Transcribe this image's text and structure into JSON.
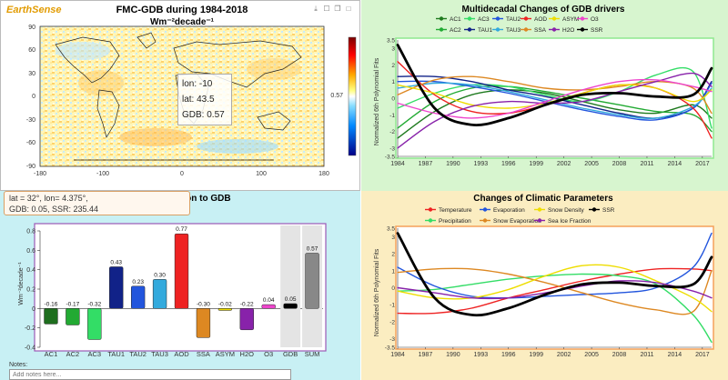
{
  "map": {
    "logo": "EarthSense",
    "title": "FMC-GDB during 1984-2018",
    "subtitle": "Wm⁻²decade⁻¹",
    "toolbar_icons": [
      "download-icon",
      "frame-icon",
      "copy-icon",
      "square-icon"
    ],
    "y_ticks": [
      "90",
      "60",
      "30",
      "0",
      "-30",
      "-60",
      "-90"
    ],
    "x_ticks": [
      "-180",
      "-100",
      "0",
      "100",
      "180"
    ],
    "colorbar_label": "0.57",
    "tooltip": {
      "lon": "lon: -10",
      "lat": "lat: 43.5",
      "gdb": "GDB: 0.57"
    }
  },
  "infobox": {
    "line1": "lat = 32°, lon= 4.375°,",
    "line2": "GDB: 0.05, SSR: 235.44"
  },
  "contrib": {
    "title": "Contribution to GDB",
    "ylabel": "Wm⁻²decade⁻¹",
    "notes_label": "Notes:",
    "notes_placeholder": "Add notes here..."
  },
  "drivers": {
    "title": "Multidecadal Changes of GDB drivers",
    "legend_row1": [
      {
        "name": "AC1",
        "color": "#1e7a1e"
      },
      {
        "name": "AC3",
        "color": "#33dd66"
      },
      {
        "name": "TAU2",
        "color": "#2255dd"
      },
      {
        "name": "AOD",
        "color": "#ee2222"
      },
      {
        "name": "ASYM",
        "color": "#eedd00"
      },
      {
        "name": "O3",
        "color": "#ee44cc"
      }
    ],
    "legend_row2": [
      {
        "name": "AC2",
        "color": "#22aa33"
      },
      {
        "name": "TAU1",
        "color": "#112288"
      },
      {
        "name": "TAU3",
        "color": "#33aadd"
      },
      {
        "name": "SSA",
        "color": "#dd8822"
      },
      {
        "name": "H2O",
        "color": "#8822aa"
      },
      {
        "name": "SSR",
        "color": "#000000"
      }
    ],
    "ylabel": "Normalized 6th Polynomial Fits"
  },
  "climate": {
    "title": "Changes of Climatic Parameters",
    "legend_row1": [
      {
        "name": "Temperature",
        "color": "#ee2222"
      },
      {
        "name": "Evaporation",
        "color": "#2255dd"
      },
      {
        "name": "Snow Density",
        "color": "#eedd00"
      },
      {
        "name": "SSR",
        "color": "#000000"
      }
    ],
    "legend_row2": [
      {
        "name": "Precipitation",
        "color": "#33dd66"
      },
      {
        "name": "Snow Evaporation",
        "color": "#dd8822"
      },
      {
        "name": "Sea Ice Fraction",
        "color": "#8822aa"
      }
    ],
    "ylabel": "Normalized 6th Polynomial Fits"
  },
  "chart_data": [
    {
      "type": "bar",
      "title": "Contribution to GDB",
      "ylabel": "Wm⁻²decade⁻¹",
      "categories": [
        "AC1",
        "AC2",
        "AC3",
        "TAU1",
        "TAU2",
        "TAU3",
        "AOD",
        "SSA",
        "ASYM",
        "H2O",
        "O3",
        "GDB",
        "SUM"
      ],
      "values": [
        -0.16,
        -0.17,
        -0.32,
        0.43,
        0.23,
        0.3,
        0.77,
        -0.3,
        -0.02,
        -0.22,
        0.04,
        0.05,
        0.57
      ],
      "value_labels": [
        "-0.16",
        "-0.17",
        "-0.32",
        "0.43",
        "0.23",
        "0.30",
        "0.77",
        "-0.30",
        "-0.02",
        "-0.22",
        "0.04",
        "0.05",
        "0.57"
      ],
      "colors": [
        "#1e6e1e",
        "#22aa33",
        "#33dd66",
        "#112288",
        "#2255dd",
        "#33aadd",
        "#ee2222",
        "#dd8822",
        "#eedd00",
        "#8822aa",
        "#ee44cc",
        "#000000",
        "#888888"
      ],
      "ylim": [
        -0.4,
        0.8
      ],
      "y_ticks": [
        "-0.4",
        "-0.2",
        "0",
        "0.2",
        "0.4",
        "0.6",
        "0.8"
      ]
    },
    {
      "type": "line",
      "title": "Multidecadal Changes of GDB drivers",
      "ylabel": "Normalized 6th Polynomial Fits",
      "ylim": [
        -3.5,
        3.5
      ],
      "y_ticks": [
        "-3.5",
        "-3",
        "-2",
        "-1",
        "0",
        "1",
        "2",
        "3",
        "3.5"
      ],
      "x_ticks": [
        "1984",
        "1987",
        "1990",
        "1993",
        "1996",
        "1999",
        "2002",
        "2005",
        "2008",
        "2011",
        "2014",
        "2017"
      ],
      "x": [
        1984,
        1988,
        1992,
        1996,
        2000,
        2004,
        2008,
        2012,
        2016,
        2018
      ],
      "series": [
        {
          "name": "AC1",
          "color": "#1e7a1e",
          "width": 1.4,
          "values": [
            -2.4,
            -0.8,
            0.2,
            0.5,
            0.3,
            -0.2,
            -0.7,
            -0.9,
            -0.4,
            -1.2
          ]
        },
        {
          "name": "AC2",
          "color": "#22aa33",
          "width": 1.4,
          "values": [
            -1.8,
            -0.2,
            0.6,
            0.7,
            0.4,
            0.0,
            -0.4,
            -0.8,
            -1.0,
            -2.0
          ]
        },
        {
          "name": "AC3",
          "color": "#33dd66",
          "width": 1.4,
          "values": [
            -0.6,
            0.3,
            0.8,
            0.7,
            0.2,
            -0.2,
            0.4,
            1.4,
            1.6,
            -1.8
          ]
        },
        {
          "name": "TAU1",
          "color": "#112288",
          "width": 1.4,
          "values": [
            1.3,
            1.3,
            1.0,
            0.5,
            0.1,
            -0.4,
            -0.9,
            -1.2,
            -0.6,
            1.0
          ]
        },
        {
          "name": "TAU2",
          "color": "#2255dd",
          "width": 1.4,
          "values": [
            1.0,
            1.0,
            0.7,
            0.3,
            -0.2,
            -0.7,
            -1.1,
            -1.3,
            -0.6,
            0.9
          ]
        },
        {
          "name": "TAU3",
          "color": "#33aadd",
          "width": 1.4,
          "values": [
            0.6,
            0.9,
            0.8,
            0.4,
            -0.1,
            -0.6,
            -1.0,
            -1.2,
            -0.5,
            0.6
          ]
        },
        {
          "name": "AOD",
          "color": "#ee2222",
          "width": 1.4,
          "values": [
            2.2,
            0.2,
            -0.8,
            -0.9,
            -0.4,
            0.3,
            0.8,
            0.6,
            -0.6,
            -2.4
          ]
        },
        {
          "name": "SSA",
          "color": "#dd8822",
          "width": 1.4,
          "values": [
            0.2,
            1.1,
            1.3,
            1.0,
            0.6,
            0.5,
            0.7,
            1.0,
            0.6,
            -0.9
          ]
        },
        {
          "name": "ASYM",
          "color": "#eedd00",
          "width": 1.4,
          "values": [
            0.8,
            0.3,
            -0.4,
            -0.6,
            -0.3,
            0.3,
            0.8,
            0.6,
            -0.2,
            0.5
          ]
        },
        {
          "name": "H2O",
          "color": "#8822aa",
          "width": 1.4,
          "values": [
            -3.0,
            -1.4,
            -0.5,
            -0.2,
            -0.3,
            -0.2,
            0.4,
            1.0,
            1.5,
            0.7
          ]
        },
        {
          "name": "O3",
          "color": "#ee44cc",
          "width": 1.4,
          "values": [
            -0.3,
            -0.9,
            -1.2,
            -0.9,
            -0.2,
            0.5,
            1.0,
            1.1,
            0.7,
            0.4
          ]
        },
        {
          "name": "SSR",
          "color": "#000000",
          "width": 2.8,
          "values": [
            3.2,
            -0.6,
            -1.6,
            -1.2,
            -0.4,
            0.2,
            0.3,
            0.1,
            0.2,
            1.8
          ]
        }
      ]
    },
    {
      "type": "line",
      "title": "Changes of Climatic Parameters",
      "ylabel": "Normalized 6th Polynomial Fits",
      "ylim": [
        -3.5,
        3.5
      ],
      "y_ticks": [
        "-3.5",
        "-3",
        "-2",
        "-1",
        "0",
        "1",
        "2",
        "3",
        "3.5"
      ],
      "x_ticks": [
        "1984",
        "1987",
        "1990",
        "1993",
        "1996",
        "1999",
        "2002",
        "2005",
        "2008",
        "2011",
        "2014",
        "2017"
      ],
      "x": [
        1984,
        1988,
        1992,
        1996,
        2000,
        2004,
        2008,
        2012,
        2016,
        2018
      ],
      "series": [
        {
          "name": "Temperature",
          "color": "#ee2222",
          "width": 1.4,
          "values": [
            -1.5,
            -1.5,
            -1.2,
            -0.6,
            -0.1,
            0.4,
            0.8,
            1.1,
            1.1,
            1.0
          ]
        },
        {
          "name": "Precipitation",
          "color": "#33dd66",
          "width": 1.4,
          "values": [
            -0.2,
            -0.1,
            0.2,
            0.5,
            0.7,
            0.8,
            0.7,
            0.2,
            -1.6,
            -3.2
          ]
        },
        {
          "name": "Evaporation",
          "color": "#2255dd",
          "width": 1.4,
          "values": [
            1.2,
            0.1,
            -0.5,
            -0.6,
            -0.5,
            -0.4,
            -0.3,
            0.0,
            1.2,
            3.2
          ]
        },
        {
          "name": "Snow Evaporation",
          "color": "#dd8822",
          "width": 1.4,
          "values": [
            0.9,
            1.1,
            1.1,
            0.8,
            0.3,
            -0.3,
            -0.9,
            -1.3,
            -1.4,
            1.0
          ]
        },
        {
          "name": "Snow Density",
          "color": "#eedd00",
          "width": 1.4,
          "values": [
            -0.2,
            -0.6,
            -0.6,
            -0.1,
            0.7,
            1.3,
            1.2,
            0.4,
            -0.6,
            -1.4
          ]
        },
        {
          "name": "Sea Ice Fraction",
          "color": "#8822aa",
          "width": 1.4,
          "values": [
            0.0,
            -0.3,
            -0.6,
            -0.6,
            -0.3,
            0.1,
            0.4,
            0.3,
            -0.2,
            -0.6
          ]
        },
        {
          "name": "SSR",
          "color": "#000000",
          "width": 2.8,
          "values": [
            3.2,
            -0.6,
            -1.6,
            -1.2,
            -0.4,
            0.2,
            0.3,
            0.1,
            0.2,
            1.8
          ]
        }
      ]
    }
  ]
}
